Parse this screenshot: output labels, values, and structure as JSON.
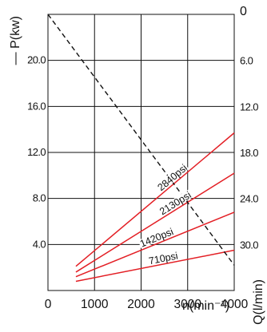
{
  "chart_data": {
    "type": "line",
    "title": "",
    "xlabel": "n(min⁻¹)",
    "ylabel_left": "— P(kw)",
    "ylabel_right": "Q(l/min)",
    "x_ticks": [
      "0",
      "1000",
      "2000",
      "3000",
      "4000"
    ],
    "y_left_ticks": [
      "20.0",
      "16.0",
      "12.0",
      "8.0",
      "4.0"
    ],
    "y_right_ticks": [
      "0",
      "6.0",
      "12.0",
      "18.0",
      "24.0",
      "30.0"
    ],
    "xlim": [
      0,
      4000
    ],
    "ylim_left": [
      0,
      24
    ],
    "ylim_right": [
      36,
      0
    ],
    "grid": true,
    "series": [
      {
        "name": "710psi",
        "color": "#e31e24",
        "axis": "left",
        "x": [
          600,
          4000
        ],
        "y": [
          0.8,
          3.5
        ]
      },
      {
        "name": "1420psi",
        "color": "#e31e24",
        "axis": "left",
        "x": [
          600,
          4000
        ],
        "y": [
          1.2,
          6.8
        ]
      },
      {
        "name": "2130psi",
        "color": "#e31e24",
        "axis": "left",
        "x": [
          600,
          4000
        ],
        "y": [
          1.6,
          10.2
        ]
      },
      {
        "name": "2840psi",
        "color": "#e31e24",
        "axis": "left",
        "x": [
          600,
          4000
        ],
        "y": [
          2.1,
          13.7
        ]
      },
      {
        "name": "",
        "color": "#111111",
        "style": "dashed",
        "axis": "left",
        "x": [
          0,
          4000
        ],
        "y": [
          24,
          2.2
        ]
      }
    ]
  }
}
